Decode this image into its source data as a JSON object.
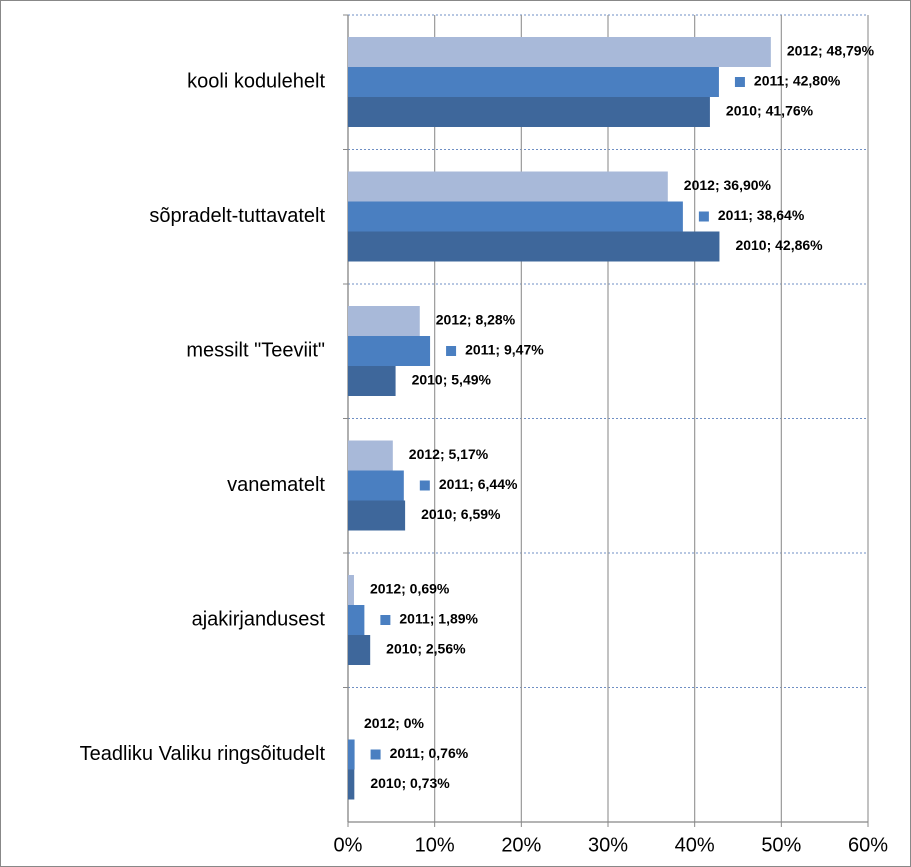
{
  "chart_data": {
    "type": "bar",
    "orientation": "horizontal",
    "categories": [
      "kooli kodulehelt",
      "sõpradelt-tuttavatelt",
      "messilt \"Teeviit\"",
      "vanematelt",
      "ajakirjandusest",
      "Teadliku Valiku ringsõitudelt"
    ],
    "series": [
      {
        "name": "2012",
        "color": "#a8b9d9",
        "values": [
          48.79,
          36.9,
          8.28,
          5.17,
          0.69,
          0
        ],
        "value_labels": [
          "2012; 48,79%",
          "2012; 36,90%",
          "2012; 8,28%",
          "2012; 5,17%",
          "2012; 0,69%",
          "2012; 0%"
        ]
      },
      {
        "name": "2011",
        "color": "#4a7fc1",
        "values": [
          42.8,
          38.64,
          9.47,
          6.44,
          1.89,
          0.76
        ],
        "value_labels": [
          "2011; 42,80%",
          "2011; 38,64%",
          "2011; 9,47%",
          "2011; 6,44%",
          "2011; 1,89%",
          "2011; 0,76%"
        ]
      },
      {
        "name": "2010",
        "color": "#3e679b",
        "values": [
          41.76,
          42.86,
          5.49,
          6.59,
          2.56,
          0.73
        ],
        "value_labels": [
          "2010; 41,76%",
          "2010; 42,86%",
          "2010; 5,49%",
          "2010; 6,59%",
          "2010; 2,56%",
          "2010; 0,73%"
        ]
      }
    ],
    "xlim": [
      0,
      60
    ],
    "xticks": [
      {
        "value": 0,
        "label": "0%"
      },
      {
        "value": 10,
        "label": "10%"
      },
      {
        "value": 20,
        "label": "20%"
      },
      {
        "value": 30,
        "label": "30%"
      },
      {
        "value": 40,
        "label": "40%"
      },
      {
        "value": 50,
        "label": "50%"
      },
      {
        "value": 60,
        "label": "60%"
      }
    ],
    "grid": true
  }
}
